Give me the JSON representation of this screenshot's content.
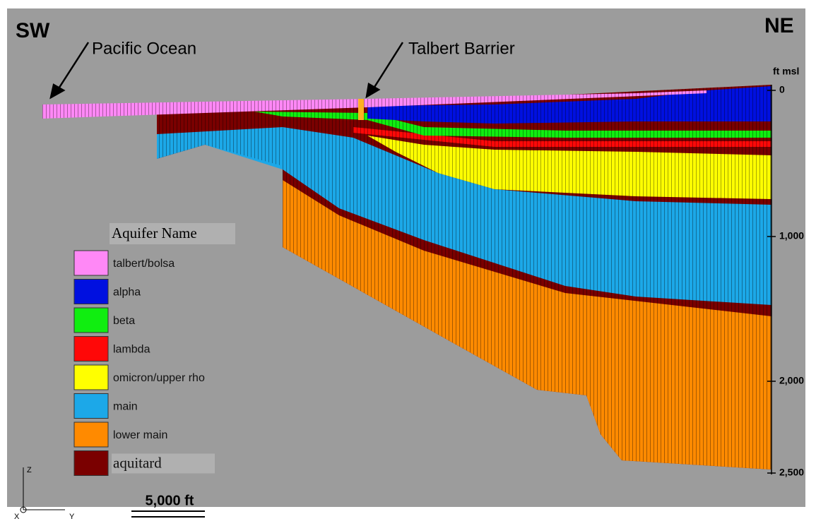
{
  "labels": {
    "sw": "SW",
    "ne": "NE",
    "pacific": "Pacific Ocean",
    "talbert": "Talbert Barrier"
  },
  "depth_axis": {
    "label": "ft msl",
    "ticks": [
      "0",
      "1,000",
      "2,000",
      "2,500"
    ]
  },
  "legend": {
    "title": "Aquifer Name",
    "items": [
      {
        "name": "talbert/bolsa",
        "color": "#ff88f6"
      },
      {
        "name": "alpha",
        "color": "#0010e0"
      },
      {
        "name": "beta",
        "color": "#10ee10"
      },
      {
        "name": "lambda",
        "color": "#ff0808"
      },
      {
        "name": "omicron/upper rho",
        "color": "#ffff00"
      },
      {
        "name": "main",
        "color": "#1ca8e8"
      },
      {
        "name": "lower main",
        "color": "#ff8a00"
      },
      {
        "name": "aquitard",
        "color": "#7a0000"
      }
    ]
  },
  "scale_bar": "5,000 ft",
  "triad": {
    "z": "Z",
    "x": "X",
    "y": "Y"
  }
}
